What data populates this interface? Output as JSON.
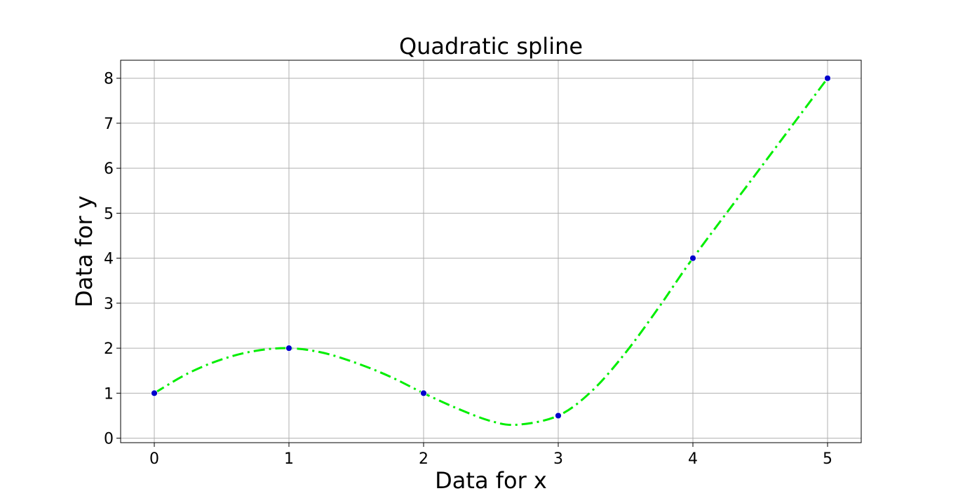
{
  "chart_data": {
    "type": "line",
    "title": "Quadratic spline",
    "xlabel": "Data for x",
    "ylabel": "Data for y",
    "xlim": [
      -0.25,
      5.25
    ],
    "ylim": [
      -0.1,
      8.4
    ],
    "x_ticks": [
      "0",
      "1",
      "2",
      "3",
      "4",
      "5"
    ],
    "y_ticks": [
      "0",
      "1",
      "2",
      "3",
      "4",
      "5",
      "6",
      "7",
      "8"
    ],
    "grid": true,
    "points": {
      "x": [
        0,
        1,
        2,
        3,
        4,
        5
      ],
      "y": [
        1,
        2,
        1,
        0.5,
        4,
        8
      ],
      "color": "#0000cc"
    },
    "spline": {
      "x": [
        0,
        0.25,
        0.5,
        0.75,
        1,
        1.25,
        1.5,
        1.75,
        2,
        2.25,
        2.5,
        2.7,
        3,
        3.25,
        3.5,
        3.75,
        4,
        4.5,
        5
      ],
      "y": [
        1,
        1.44,
        1.75,
        1.94,
        2,
        1.9,
        1.67,
        1.37,
        1,
        0.66,
        0.38,
        0.3,
        0.5,
        1.05,
        1.9,
        2.92,
        4,
        6,
        8
      ],
      "color": "#00ee00",
      "style": "dash-dot"
    }
  }
}
